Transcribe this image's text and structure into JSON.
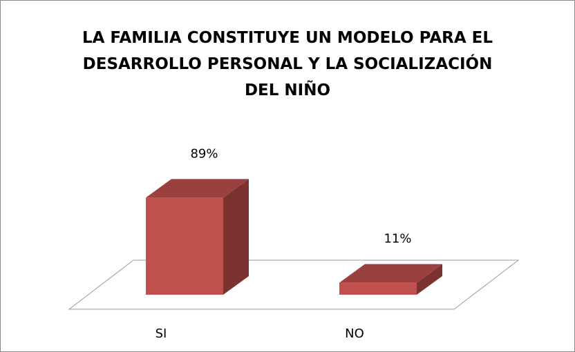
{
  "chart_data": {
    "type": "bar3d",
    "title": "LA FAMILIA CONSTITUYE UN MODELO PARA EL DESARROLLO PERSONAL Y LA SOCIALIZACIÓN DEL NIÑO",
    "categories": [
      "SI",
      "NO"
    ],
    "values": [
      89,
      11
    ],
    "value_labels": [
      "89%",
      "11%"
    ],
    "color": "#c0504d"
  }
}
